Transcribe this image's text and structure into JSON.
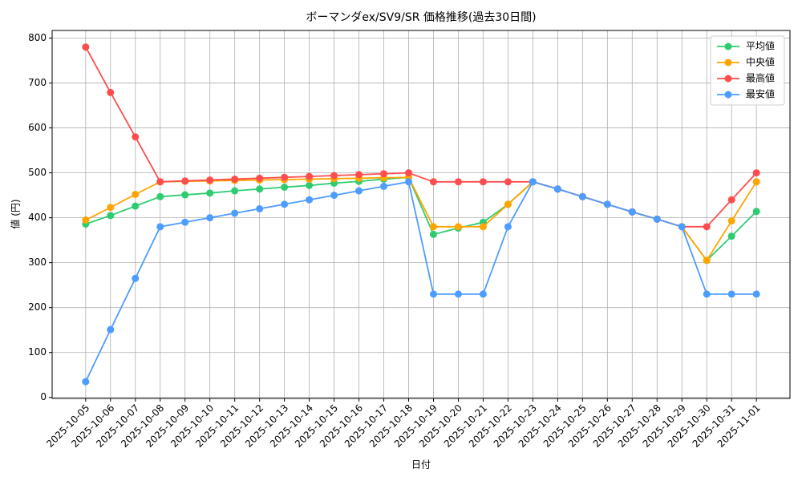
{
  "chart_data": {
    "type": "line",
    "title": "ボーマンダex/SV9/SR 価格推移(過去30日間)",
    "x_label": "日付",
    "y_label": "値 (円)",
    "categories": [
      "2025-10-05",
      "2025-10-06",
      "2025-10-07",
      "2025-10-08",
      "2025-10-09",
      "2025-10-10",
      "2025-10-11",
      "2025-10-12",
      "2025-10-13",
      "2025-10-14",
      "2025-10-15",
      "2025-10-16",
      "2025-10-17",
      "2025-10-18",
      "2025-10-19",
      "2025-10-20",
      "2025-10-21",
      "2025-10-22",
      "2025-10-23",
      "2025-10-24",
      "2025-10-25",
      "2025-10-26",
      "2025-10-27",
      "2025-10-28",
      "2025-10-29",
      "2025-10-30",
      "2025-10-31",
      "2025-11-01"
    ],
    "series": [
      {
        "name": "平均値",
        "color": "#2ecc71",
        "values": [
          386,
          405,
          426,
          447,
          451,
          455,
          460,
          464,
          468,
          472,
          477,
          481,
          486,
          490,
          363,
          377,
          390,
          430,
          480,
          464,
          447,
          430,
          413,
          397,
          380,
          305,
          359,
          414
        ]
      },
      {
        "name": "中央値",
        "color": "#ffa500",
        "values": [
          395,
          423,
          452,
          480,
          481,
          482,
          483,
          484,
          485,
          486,
          487,
          488,
          489,
          490,
          380,
          380,
          380,
          430,
          480,
          464,
          447,
          430,
          413,
          397,
          380,
          305,
          393,
          480
        ]
      },
      {
        "name": "最高値",
        "color": "#ff4d4d",
        "values": [
          780,
          679,
          580,
          480,
          482,
          484,
          486,
          488,
          490,
          492,
          494,
          496,
          498,
          500,
          480,
          480,
          480,
          480,
          480,
          464,
          447,
          430,
          413,
          397,
          380,
          380,
          440,
          500
        ]
      },
      {
        "name": "最安値",
        "color": "#4d9cff",
        "values": [
          35,
          151,
          265,
          380,
          390,
          400,
          410,
          420,
          430,
          440,
          450,
          460,
          470,
          480,
          230,
          230,
          230,
          380,
          480,
          464,
          447,
          430,
          413,
          397,
          380,
          230,
          230,
          230
        ]
      }
    ],
    "ylim": [
      -2.25,
      817
    ],
    "yticks": [
      0,
      100,
      200,
      300,
      400,
      500,
      600,
      700,
      800
    ],
    "grid": true,
    "legend": "upper right"
  }
}
